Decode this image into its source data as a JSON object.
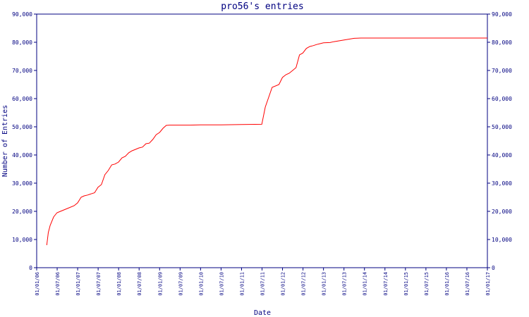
{
  "chart_data": {
    "type": "line",
    "title": "pro56's entries",
    "xlabel": "Date",
    "ylabel": "Number of Entries",
    "ylim": [
      0,
      90000
    ],
    "yticks": [
      0,
      10000,
      20000,
      30000,
      40000,
      50000,
      60000,
      70000,
      80000,
      90000
    ],
    "ytick_labels": [
      "0",
      "10,000",
      "20,000",
      "30,000",
      "40,000",
      "50,000",
      "60,000",
      "70,000",
      "80,000",
      "90,000"
    ],
    "xlim": [
      "2006-01-01",
      "2017-01-01"
    ],
    "xtick_labels": [
      "01/01/06",
      "01/07/06",
      "01/01/07",
      "01/07/07",
      "01/01/08",
      "01/07/08",
      "01/01/09",
      "01/07/09",
      "01/01/10",
      "01/07/10",
      "01/01/11",
      "01/07/11",
      "01/01/12",
      "01/07/12",
      "01/01/13",
      "01/07/13",
      "01/01/14",
      "01/07/14",
      "01/01/15",
      "01/07/15",
      "01/01/16",
      "01/07/16",
      "01/01/17"
    ],
    "grid": false,
    "line_color": "#ff0000",
    "axis_color": "#000080",
    "series": [
      {
        "x": [
          "2006-04-01",
          "2006-04-15",
          "2006-05-01",
          "2006-06-01",
          "2006-07-01",
          "2006-08-01",
          "2006-10-01",
          "2006-12-01",
          "2007-01-01",
          "2007-02-01",
          "2007-03-01",
          "2007-04-01",
          "2007-05-01",
          "2007-06-01",
          "2007-07-01",
          "2007-08-01",
          "2007-09-01",
          "2007-10-01",
          "2007-11-01",
          "2007-12-01",
          "2008-01-01",
          "2008-02-01",
          "2008-03-01",
          "2008-04-01",
          "2008-05-01",
          "2008-06-01",
          "2008-07-01",
          "2008-08-01",
          "2008-09-01",
          "2008-10-01",
          "2008-11-01",
          "2008-12-01",
          "2009-01-01",
          "2009-02-01",
          "2009-03-01",
          "2009-04-01",
          "2009-05-01",
          "2009-06-01",
          "2009-07-01",
          "2009-08-01",
          "2009-09-01",
          "2009-10-01",
          "2010-01-01",
          "2010-07-01",
          "2011-01-01",
          "2011-07-01",
          "2011-08-01",
          "2011-10-01",
          "2011-12-01",
          "2012-01-01",
          "2012-02-01",
          "2012-03-01",
          "2012-04-01",
          "2012-05-01",
          "2012-06-01",
          "2012-07-01",
          "2012-08-01",
          "2012-09-01",
          "2012-10-01",
          "2012-11-01",
          "2012-12-01",
          "2013-01-01",
          "2013-03-01",
          "2013-04-01",
          "2013-06-01",
          "2013-08-01",
          "2013-10-01",
          "2013-12-01",
          "2014-02-01",
          "2014-03-01",
          "2017-01-01"
        ],
        "y": [
          8000,
          12500,
          15000,
          18000,
          19500,
          20000,
          21000,
          22000,
          23000,
          25000,
          25500,
          25800,
          26200,
          26600,
          28500,
          29500,
          33000,
          34500,
          36500,
          36800,
          37500,
          39000,
          39500,
          40800,
          41500,
          42000,
          42500,
          42800,
          44000,
          44200,
          45500,
          47200,
          48000,
          49500,
          50500,
          50600,
          50600,
          50600,
          50600,
          50600,
          50600,
          50600,
          50700,
          50700,
          50800,
          50900,
          57000,
          64000,
          65000,
          67500,
          68500,
          69000,
          70000,
          71000,
          75500,
          76200,
          77800,
          78500,
          78800,
          79200,
          79500,
          79800,
          79900,
          80200,
          80600,
          81000,
          81400,
          81500,
          81500,
          81500,
          81500
        ]
      }
    ]
  }
}
